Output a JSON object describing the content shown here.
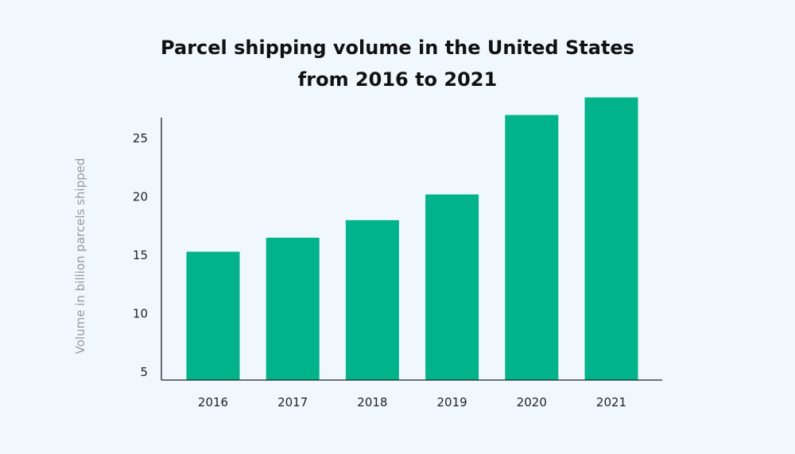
{
  "chart_data": {
    "type": "bar",
    "title_lines": [
      "Parcel shipping volume in the United States",
      "from 2016 to 2021"
    ],
    "xlabel": "",
    "ylabel": "Volume in billion parcels shipped",
    "categories": [
      "2016",
      "2017",
      "2018",
      "2019",
      "2020",
      "2021"
    ],
    "values": [
      15.3,
      16.5,
      18.0,
      20.2,
      27.0,
      28.5
    ],
    "yticks": [
      5,
      10,
      15,
      20,
      25
    ],
    "ylim": [
      4.3,
      30
    ],
    "grid": false,
    "bar_color": "#00b38a"
  }
}
